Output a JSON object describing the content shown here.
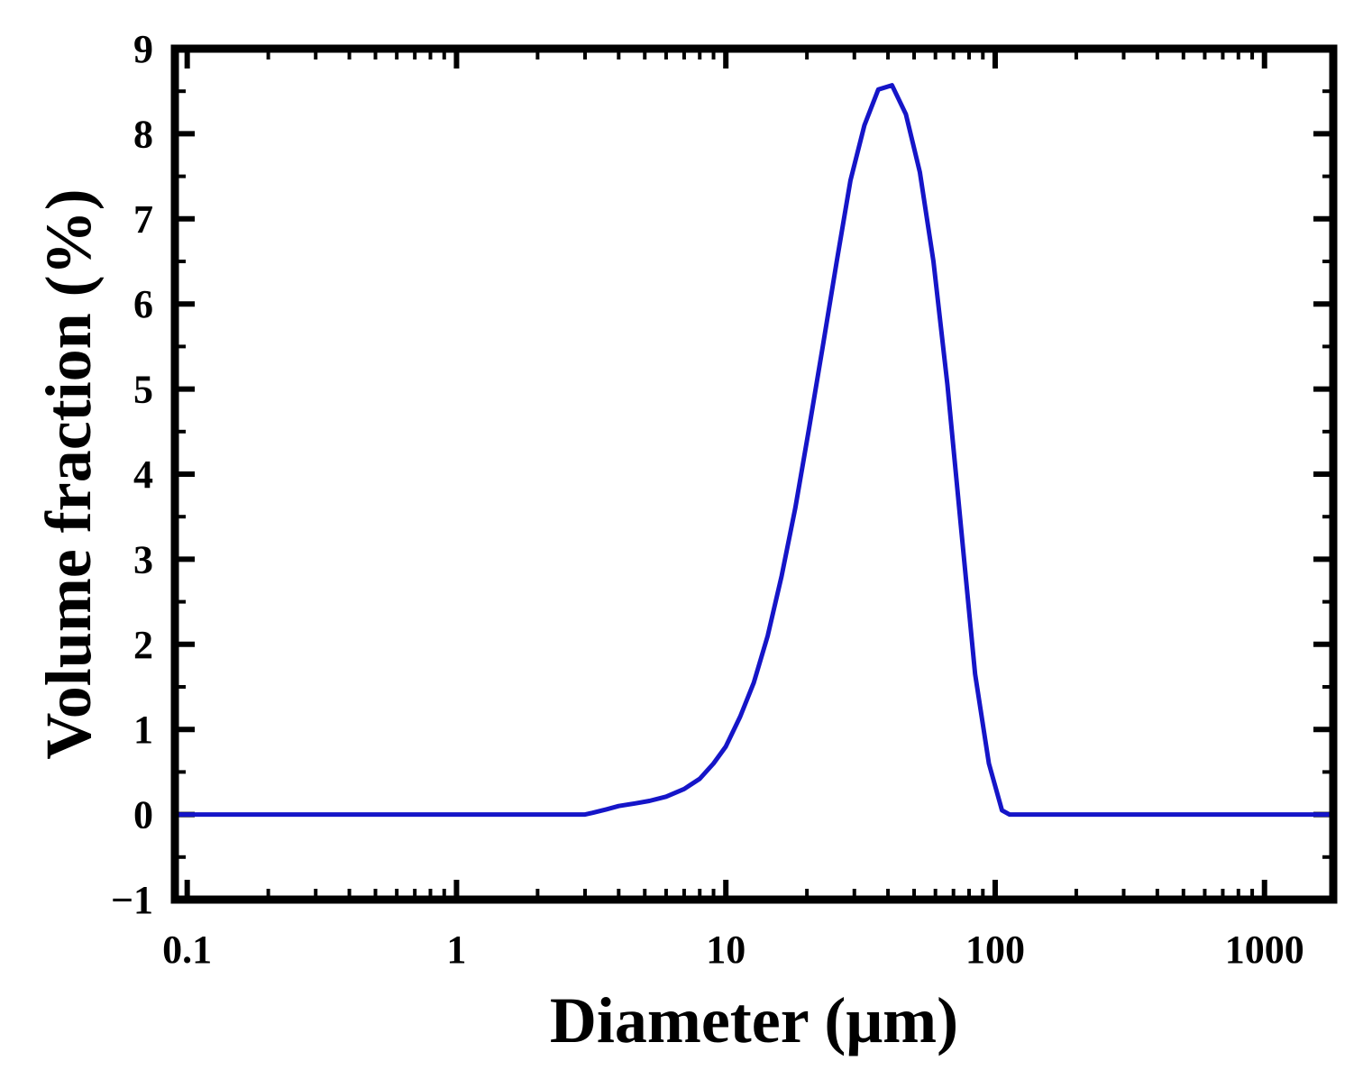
{
  "chart_data": {
    "type": "line",
    "title": "",
    "xlabel": "Diameter (μm)",
    "ylabel": "Volume fraction (%)",
    "xscale": "log",
    "xlim": [
      0.09,
      1800
    ],
    "ylim": [
      -1,
      9
    ],
    "xticks": [
      {
        "value": 0.1,
        "label": "0.1"
      },
      {
        "value": 1,
        "label": "1"
      },
      {
        "value": 10,
        "label": "10"
      },
      {
        "value": 100,
        "label": "100"
      },
      {
        "value": 1000,
        "label": "1000"
      }
    ],
    "yticks": [
      {
        "value": -1,
        "label": "−1"
      },
      {
        "value": 0,
        "label": "0"
      },
      {
        "value": 1,
        "label": "1"
      },
      {
        "value": 2,
        "label": "2"
      },
      {
        "value": 3,
        "label": "3"
      },
      {
        "value": 4,
        "label": "4"
      },
      {
        "value": 5,
        "label": "5"
      },
      {
        "value": 6,
        "label": "6"
      },
      {
        "value": 7,
        "label": "7"
      },
      {
        "value": 8,
        "label": "8"
      },
      {
        "value": 9,
        "label": "9"
      }
    ],
    "grid": false,
    "line_color": "#1515c8",
    "series": [
      {
        "x": [
          0.09,
          1.0,
          3.0,
          3.2,
          3.6,
          4.0,
          4.6,
          5.2,
          6.0,
          7.0,
          8.0,
          9.0,
          10.0,
          11.3,
          12.7,
          14.3,
          16.1,
          18.1,
          20.4,
          22.9,
          25.8,
          29.0,
          32.7,
          36.8,
          41.4,
          46.6,
          52.5,
          59.0,
          66.5,
          74.8,
          84.2,
          94.8,
          106,
          113,
          200,
          500,
          1000,
          1800
        ],
        "y": [
          0,
          0,
          0,
          0.02,
          0.06,
          0.1,
          0.13,
          0.16,
          0.21,
          0.3,
          0.42,
          0.6,
          0.8,
          1.15,
          1.55,
          2.1,
          2.8,
          3.6,
          4.55,
          5.5,
          6.5,
          7.45,
          8.1,
          8.52,
          8.57,
          8.23,
          7.55,
          6.5,
          5.05,
          3.35,
          1.65,
          0.6,
          0.05,
          0,
          0,
          0,
          0,
          0
        ]
      }
    ]
  }
}
